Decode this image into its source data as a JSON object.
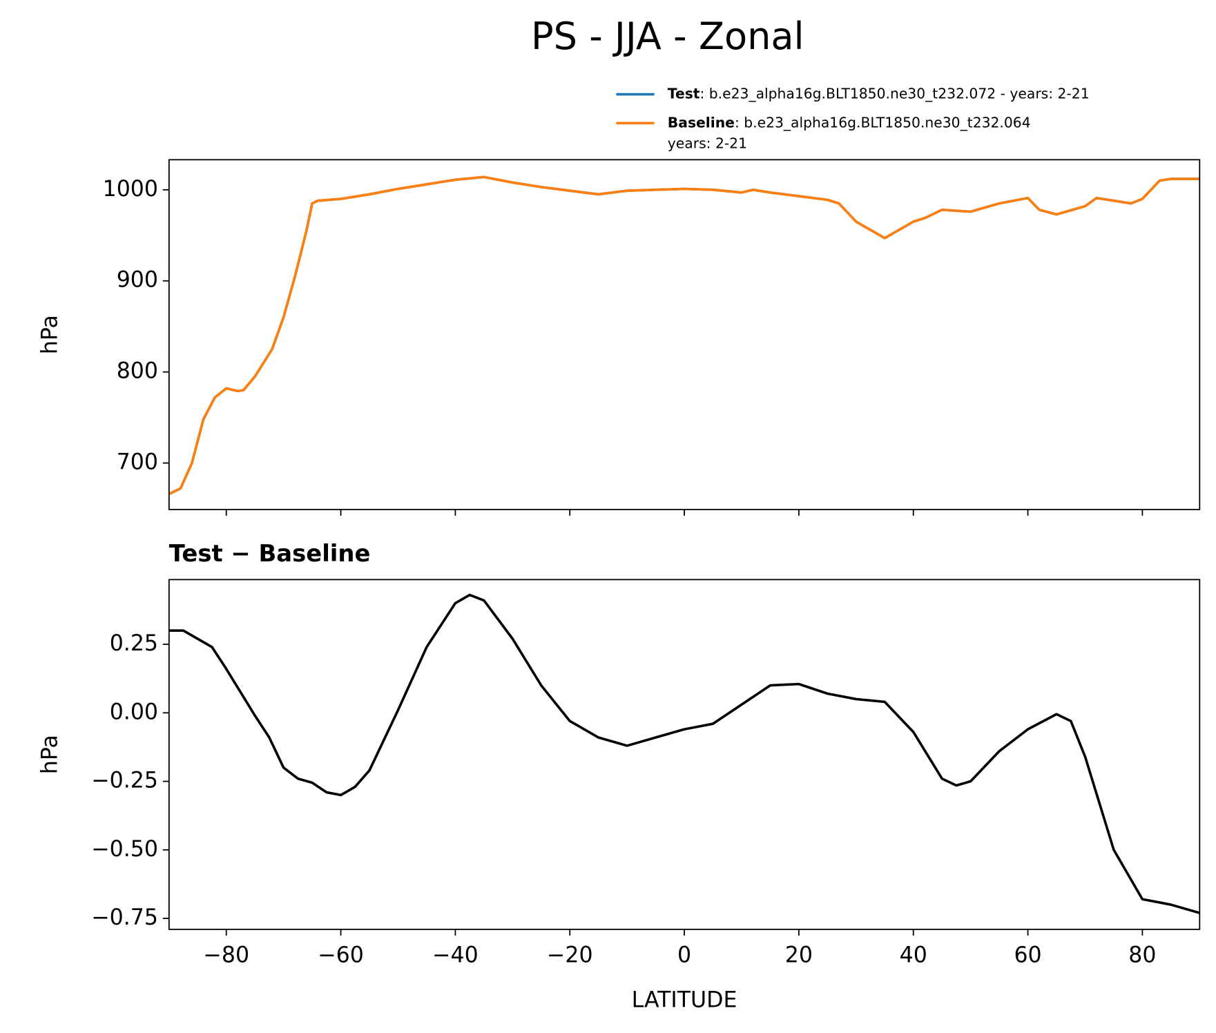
{
  "title": "PS - JJA - Zonal",
  "chart_data": [
    {
      "type": "line",
      "ylabel": "hPa",
      "xlim": [
        -90,
        90
      ],
      "ylim": [
        649,
        1033
      ],
      "xticks": [
        -80,
        -60,
        -40,
        -20,
        0,
        20,
        40,
        60,
        80
      ],
      "yticks": [
        700,
        800,
        900,
        1000
      ],
      "x": [
        -90,
        -88,
        -86,
        -84,
        -82,
        -80,
        -78,
        -77,
        -75,
        -72,
        -70,
        -68,
        -66,
        -65,
        -64,
        -60,
        -55,
        -50,
        -45,
        -40,
        -35,
        -30,
        -25,
        -20,
        -15,
        -10,
        -5,
        0,
        5,
        10,
        12,
        15,
        20,
        25,
        27,
        30,
        35,
        40,
        42,
        45,
        50,
        55,
        60,
        62,
        65,
        70,
        72,
        75,
        78,
        80,
        83,
        85,
        90
      ],
      "series": [
        {
          "name": "Test",
          "label": ": b.e23_alpha16g.BLT1850.ne30_t232.072 - years: 2-21",
          "color": "#1f77b4",
          "values": [
            666,
            672,
            700,
            748,
            772,
            782,
            779,
            780,
            795,
            825,
            860,
            905,
            955,
            985,
            988,
            990,
            995,
            1001,
            1006,
            1011,
            1014,
            1008,
            1003,
            999,
            995,
            999,
            1000,
            1001,
            1000,
            997,
            1000,
            997,
            993,
            989,
            985,
            965,
            947,
            965,
            969,
            978,
            976,
            985,
            991,
            978,
            973,
            982,
            991,
            988,
            985,
            990,
            1010,
            1012,
            1012
          ]
        },
        {
          "name": "Baseline",
          "label_lines": [
            ": b.e23_alpha16g.BLT1850.ne30_t232.064",
            "years: 2-21"
          ],
          "color": "#ff7f0e",
          "values": [
            666,
            672,
            700,
            748,
            772,
            782,
            779,
            780,
            795,
            825,
            860,
            905,
            955,
            985,
            988,
            990,
            995,
            1001,
            1006,
            1011,
            1014,
            1008,
            1003,
            999,
            995,
            999,
            1000,
            1001,
            1000,
            997,
            1000,
            997,
            993,
            989,
            985,
            965,
            947,
            965,
            969,
            978,
            976,
            985,
            991,
            978,
            973,
            982,
            991,
            988,
            985,
            990,
            1010,
            1012,
            1012
          ]
        }
      ]
    },
    {
      "type": "line",
      "title": "Test − Baseline",
      "ylabel": "hPa",
      "xlabel": "LATITUDE",
      "xlim": [
        -90,
        90
      ],
      "ylim": [
        -0.79,
        0.486
      ],
      "xticks": [
        {
          "value": -80,
          "label": "−80"
        },
        {
          "value": -60,
          "label": "−60"
        },
        {
          "value": -40,
          "label": "−40"
        },
        {
          "value": -20,
          "label": "−20"
        },
        0,
        20,
        40,
        60,
        80
      ],
      "yticks": [
        {
          "value": -0.75,
          "label": "−0.75"
        },
        {
          "value": -0.5,
          "label": "−0.50"
        },
        {
          "value": -0.25,
          "label": "−0.25"
        },
        {
          "value": 0,
          "label": "0.00"
        },
        0.25
      ],
      "x": [
        -90,
        -87.5,
        -85,
        -82.5,
        -80,
        -75,
        -72.5,
        -70,
        -67.5,
        -65,
        -62.5,
        -60,
        -57.5,
        -55,
        -50,
        -45,
        -40,
        -37.5,
        -35,
        -30,
        -25,
        -20,
        -15,
        -10,
        -5,
        0,
        5,
        10,
        15,
        20,
        25,
        30,
        35,
        40,
        45,
        47.5,
        50,
        55,
        60,
        65,
        67.5,
        70,
        75,
        80,
        82.5,
        85,
        90
      ],
      "series": [
        {
          "color": "#000000",
          "values": [
            0.3,
            0.3,
            0.27,
            0.24,
            0.16,
            -0.01,
            -0.09,
            -0.2,
            -0.24,
            -0.255,
            -0.29,
            -0.3,
            -0.27,
            -0.21,
            0.01,
            0.24,
            0.4,
            0.43,
            0.41,
            0.27,
            0.1,
            -0.03,
            -0.09,
            -0.12,
            -0.09,
            -0.06,
            -0.04,
            0.03,
            0.1,
            0.105,
            0.07,
            0.05,
            0.04,
            -0.07,
            -0.24,
            -0.265,
            -0.25,
            -0.14,
            -0.06,
            -0.005,
            -0.03,
            -0.16,
            -0.5,
            -0.68,
            -0.69,
            -0.7,
            -0.73
          ]
        }
      ]
    }
  ]
}
